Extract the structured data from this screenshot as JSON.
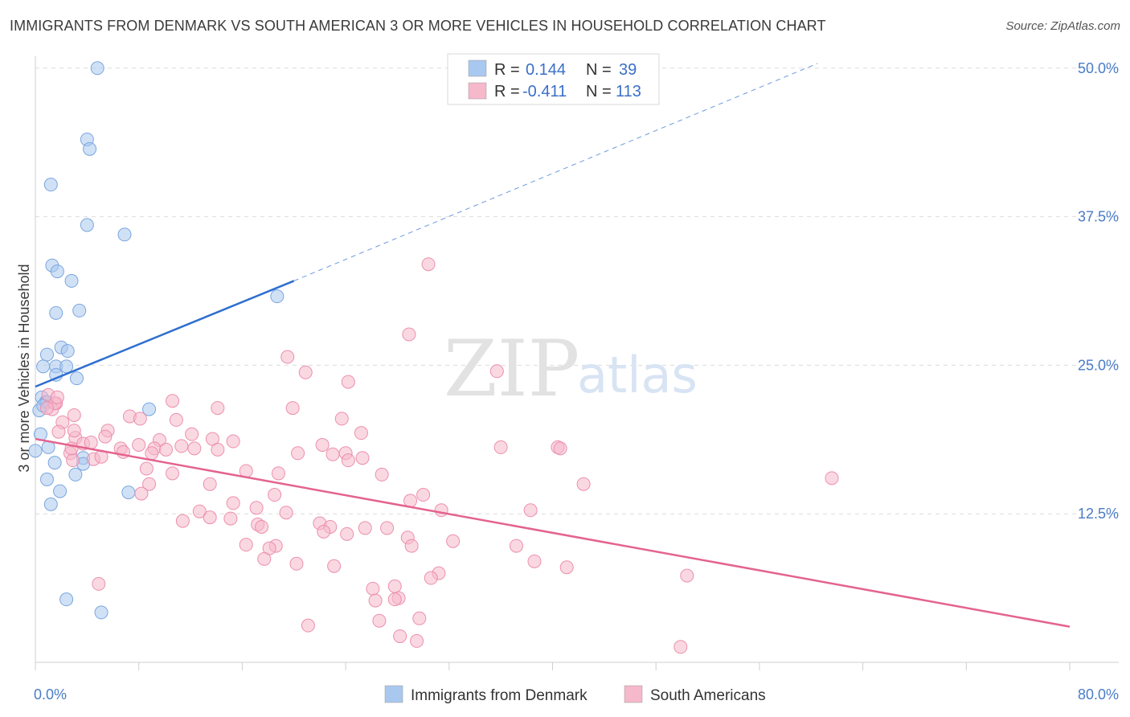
{
  "title": "IMMIGRANTS FROM DENMARK VS SOUTH AMERICAN 3 OR MORE VEHICLES IN HOUSEHOLD CORRELATION CHART",
  "source": "Source: ZipAtlas.com",
  "watermark": {
    "zip": "ZIP",
    "atlas": "atlas"
  },
  "stats_box": {
    "rows": [
      {
        "r_label": "R =",
        "r_value": "0.144",
        "n_label": "N =",
        "n_value": "39",
        "color": "#a9c8ef"
      },
      {
        "r_label": "R =",
        "r_value": "-0.411",
        "n_label": "N =",
        "n_value": "113",
        "color": "#f6b8cb"
      }
    ]
  },
  "legend": {
    "items": [
      {
        "label": "Immigrants from Denmark",
        "color": "#a9c8ef"
      },
      {
        "label": "South Americans",
        "color": "#f6b8cb"
      }
    ]
  },
  "chart_data": {
    "type": "scatter",
    "title": "IMMIGRANTS FROM DENMARK VS SOUTH AMERICAN 3 OR MORE VEHICLES IN HOUSEHOLD CORRELATION CHART",
    "xlabel": "",
    "ylabel": "3 or more Vehicles in Household",
    "xlim": [
      0,
      80
    ],
    "ylim": [
      0,
      51
    ],
    "x_ticks": [
      0,
      8,
      16,
      24,
      32,
      40,
      48,
      56,
      64,
      72,
      80
    ],
    "x_tick_labels": [
      {
        "value": 0,
        "label": "0.0%"
      },
      {
        "value": 80,
        "label": "80.0%"
      }
    ],
    "y_ticks": [
      {
        "value": 12.5,
        "label": "12.5%"
      },
      {
        "value": 25,
        "label": "25.0%"
      },
      {
        "value": 37.5,
        "label": "37.5%"
      },
      {
        "value": 50,
        "label": "50.0%"
      }
    ],
    "grid": true,
    "legend_position": "bottom-center",
    "series": [
      {
        "name": "Immigrants from Denmark",
        "color": "#a9c8ef",
        "stroke": "#7aa6de",
        "trend_color": "#2e6fcf",
        "trend": {
          "x": [
            0,
            20
          ],
          "y": [
            23.2,
            32.1
          ]
        },
        "trend_extension": {
          "x": [
            20,
            60.5
          ],
          "y": [
            32.1,
            50.4
          ]
        },
        "points": [
          [
            4.8,
            50.0
          ],
          [
            4.0,
            44.0
          ],
          [
            4.2,
            43.2
          ],
          [
            1.2,
            40.2
          ],
          [
            4.0,
            36.8
          ],
          [
            6.9,
            36.0
          ],
          [
            1.3,
            33.4
          ],
          [
            1.7,
            32.9
          ],
          [
            2.8,
            32.1
          ],
          [
            1.6,
            29.4
          ],
          [
            3.4,
            29.6
          ],
          [
            18.7,
            30.8
          ],
          [
            2.0,
            26.5
          ],
          [
            2.5,
            26.2
          ],
          [
            0.9,
            25.9
          ],
          [
            0.6,
            24.9
          ],
          [
            1.6,
            24.9
          ],
          [
            2.4,
            24.9
          ],
          [
            1.6,
            24.2
          ],
          [
            3.2,
            23.9
          ],
          [
            0.5,
            22.3
          ],
          [
            0.8,
            21.9
          ],
          [
            0.9,
            21.9
          ],
          [
            0.3,
            21.2
          ],
          [
            0.6,
            21.6
          ],
          [
            8.8,
            21.3
          ],
          [
            0.4,
            19.2
          ],
          [
            0.0,
            17.8
          ],
          [
            1.0,
            18.1
          ],
          [
            3.7,
            17.2
          ],
          [
            3.7,
            16.7
          ],
          [
            1.5,
            16.8
          ],
          [
            3.1,
            15.8
          ],
          [
            0.9,
            15.4
          ],
          [
            1.9,
            14.4
          ],
          [
            7.2,
            14.3
          ],
          [
            1.2,
            13.3
          ],
          [
            2.4,
            5.3
          ],
          [
            5.1,
            4.2
          ]
        ]
      },
      {
        "name": "South Americans",
        "color": "#f6b8cb",
        "stroke": "#ec8fae",
        "trend_color": "#e4638f",
        "trend": {
          "x": [
            0,
            80
          ],
          "y": [
            18.8,
            3.0
          ]
        },
        "points": [
          [
            30.4,
            33.5
          ],
          [
            28.9,
            27.6
          ],
          [
            19.5,
            25.7
          ],
          [
            35.7,
            24.5
          ],
          [
            20.9,
            24.4
          ],
          [
            24.2,
            23.6
          ],
          [
            1.0,
            22.5
          ],
          [
            1.6,
            21.8
          ],
          [
            1.3,
            21.3
          ],
          [
            10.6,
            22.0
          ],
          [
            14.1,
            21.4
          ],
          [
            19.9,
            21.4
          ],
          [
            3.0,
            20.8
          ],
          [
            7.3,
            20.7
          ],
          [
            8.1,
            20.5
          ],
          [
            10.9,
            20.4
          ],
          [
            23.7,
            20.5
          ],
          [
            2.1,
            20.2
          ],
          [
            5.6,
            19.5
          ],
          [
            25.2,
            19.3
          ],
          [
            1.8,
            19.4
          ],
          [
            12.1,
            19.2
          ],
          [
            3.1,
            18.9
          ],
          [
            5.4,
            19.0
          ],
          [
            9.6,
            18.7
          ],
          [
            13.7,
            18.8
          ],
          [
            15.3,
            18.6
          ],
          [
            3.7,
            18.4
          ],
          [
            6.6,
            18.0
          ],
          [
            8.0,
            18.3
          ],
          [
            9.2,
            18.0
          ],
          [
            10.1,
            17.9
          ],
          [
            12.3,
            18.0
          ],
          [
            14.1,
            17.9
          ],
          [
            22.2,
            18.3
          ],
          [
            36.0,
            18.1
          ],
          [
            40.4,
            18.1
          ],
          [
            40.6,
            18.0
          ],
          [
            2.7,
            17.6
          ],
          [
            4.5,
            17.1
          ],
          [
            6.8,
            17.7
          ],
          [
            9.0,
            17.6
          ],
          [
            11.3,
            18.2
          ],
          [
            20.3,
            17.6
          ],
          [
            23.0,
            17.5
          ],
          [
            24.0,
            17.6
          ],
          [
            25.3,
            17.2
          ],
          [
            24.2,
            17.0
          ],
          [
            5.1,
            17.3
          ],
          [
            2.9,
            17.0
          ],
          [
            8.6,
            16.3
          ],
          [
            16.3,
            16.1
          ],
          [
            18.8,
            15.9
          ],
          [
            10.6,
            15.9
          ],
          [
            26.8,
            15.8
          ],
          [
            8.8,
            15.0
          ],
          [
            13.5,
            15.0
          ],
          [
            42.4,
            15.0
          ],
          [
            61.6,
            15.5
          ],
          [
            8.2,
            14.2
          ],
          [
            18.5,
            14.1
          ],
          [
            30.0,
            14.1
          ],
          [
            15.3,
            13.4
          ],
          [
            17.1,
            13.0
          ],
          [
            29.0,
            13.6
          ],
          [
            31.4,
            12.8
          ],
          [
            12.7,
            12.7
          ],
          [
            13.5,
            12.2
          ],
          [
            15.1,
            12.1
          ],
          [
            19.4,
            12.6
          ],
          [
            17.2,
            11.6
          ],
          [
            38.3,
            12.8
          ],
          [
            11.4,
            11.9
          ],
          [
            17.5,
            11.4
          ],
          [
            22.0,
            11.7
          ],
          [
            22.8,
            11.4
          ],
          [
            25.5,
            11.3
          ],
          [
            27.2,
            11.3
          ],
          [
            22.3,
            11.0
          ],
          [
            24.1,
            10.8
          ],
          [
            28.8,
            10.5
          ],
          [
            32.3,
            10.2
          ],
          [
            29.1,
            9.8
          ],
          [
            16.3,
            9.9
          ],
          [
            18.6,
            9.8
          ],
          [
            18.1,
            9.6
          ],
          [
            37.2,
            9.8
          ],
          [
            17.7,
            8.7
          ],
          [
            20.2,
            8.3
          ],
          [
            23.1,
            8.1
          ],
          [
            38.6,
            8.5
          ],
          [
            41.1,
            8.0
          ],
          [
            31.2,
            7.5
          ],
          [
            30.6,
            7.1
          ],
          [
            50.4,
            7.3
          ],
          [
            4.9,
            6.6
          ],
          [
            26.1,
            6.2
          ],
          [
            27.8,
            6.4
          ],
          [
            26.3,
            5.2
          ],
          [
            28.1,
            5.4
          ],
          [
            21.1,
            3.1
          ],
          [
            27.8,
            5.3
          ],
          [
            26.6,
            3.5
          ],
          [
            29.7,
            3.7
          ],
          [
            28.2,
            2.2
          ],
          [
            29.5,
            1.8
          ],
          [
            49.9,
            1.3
          ],
          [
            1.5,
            21.8
          ],
          [
            0.9,
            21.4
          ],
          [
            1.7,
            22.3
          ],
          [
            4.3,
            18.5
          ],
          [
            3.0,
            19.5
          ],
          [
            2.8,
            18.0
          ]
        ]
      }
    ]
  }
}
